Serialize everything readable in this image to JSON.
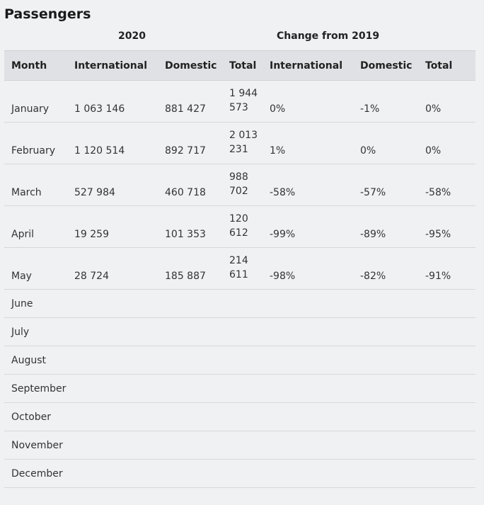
{
  "title": "Passengers",
  "groups": {
    "year": "2020",
    "change": "Change from 2019"
  },
  "columns": [
    "Month",
    "International",
    "Domestic",
    "Total",
    "International",
    "Domestic",
    "Total"
  ],
  "rows": [
    {
      "month": "January",
      "intl": "1 063 146",
      "dom": "881 427",
      "total_a": "1 944",
      "total_b": "573",
      "c_intl": "0%",
      "c_dom": "-1%",
      "c_total": "0%"
    },
    {
      "month": "February",
      "intl": "1 120 514",
      "dom": "892 717",
      "total_a": "2 013",
      "total_b": "231",
      "c_intl": "1%",
      "c_dom": "0%",
      "c_total": "0%"
    },
    {
      "month": "March",
      "intl": "527 984",
      "dom": "460 718",
      "total_a": "988",
      "total_b": "702",
      "c_intl": "-58%",
      "c_dom": "-57%",
      "c_total": "-58%"
    },
    {
      "month": "April",
      "intl": "19 259",
      "dom": "101 353",
      "total_a": "120",
      "total_b": "612",
      "c_intl": "-99%",
      "c_dom": "-89%",
      "c_total": "-95%"
    },
    {
      "month": "May",
      "intl": "28 724",
      "dom": "185 887",
      "total_a": "214",
      "total_b": "611",
      "c_intl": "-98%",
      "c_dom": "-82%",
      "c_total": "-91%"
    }
  ],
  "empty_months": [
    "June",
    "July",
    "August",
    "September",
    "October",
    "November",
    "December"
  ]
}
